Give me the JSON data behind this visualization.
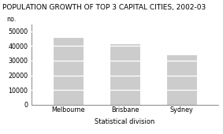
{
  "title": "POPULATION GROWTH OF TOP 3 CAPITAL CITIES, 2002-03",
  "categories": [
    "Melbourne",
    "Brisbane",
    "Sydney"
  ],
  "values": [
    46000,
    42000,
    34500
  ],
  "bar_color": "#cccccc",
  "bar_edgecolor": "#ffffff",
  "no_label": "no.",
  "xlabel": "Statistical division",
  "ylim": [
    0,
    55000
  ],
  "yticks": [
    0,
    10000,
    20000,
    30000,
    40000,
    50000
  ],
  "background_color": "#ffffff",
  "title_fontsize": 6.5,
  "axis_fontsize": 6.0,
  "tick_fontsize": 5.8,
  "bar_width": 0.55
}
